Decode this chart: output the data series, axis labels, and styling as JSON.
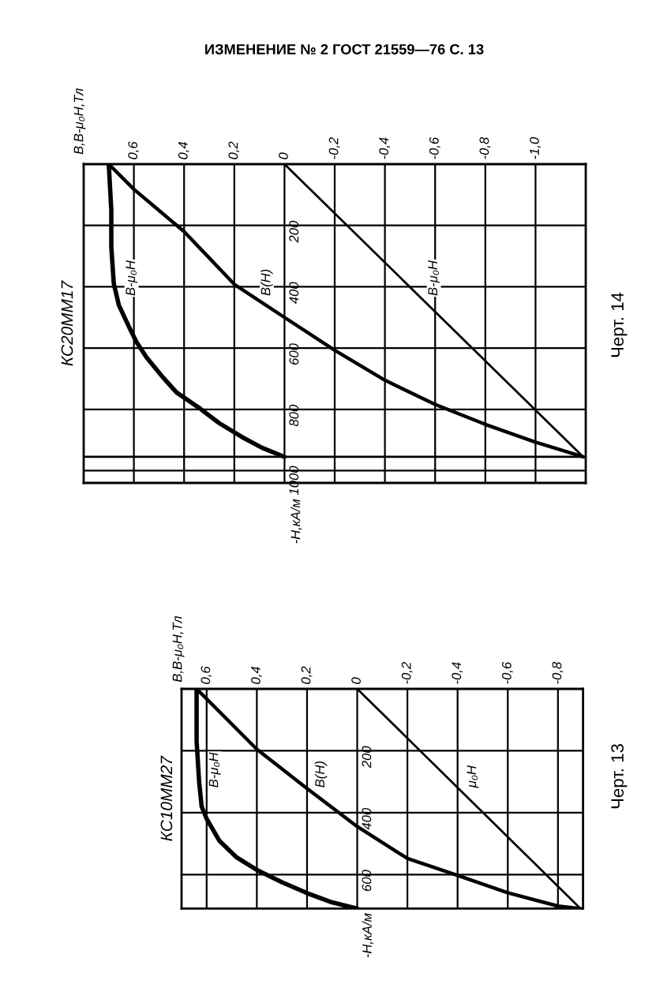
{
  "chart_data": [
    {
      "type": "line",
      "title": "КС20ММ17",
      "ylabel": "-H,кА/м",
      "annotations": [
        "ИЗМЕНЕНИЕ № 2 ГОСТ 21559—76 С. 13",
        "B,B-μ₀H,Тл",
        "Черт. 14"
      ],
      "xlim": [
        0.8,
        -1.2
      ],
      "ylim": [
        1040,
        0
      ],
      "xticks": [
        {
          "value": 0.6,
          "label": "0,6"
        },
        {
          "value": 0.4,
          "label": "0,4"
        },
        {
          "value": 0.2,
          "label": "0,2"
        },
        0,
        {
          "value": -0.2,
          "label": "-0,2"
        },
        {
          "value": -0.4,
          "label": "-0,4"
        },
        {
          "value": -0.6,
          "label": "-0,6"
        },
        {
          "value": -0.8,
          "label": "-0,8"
        },
        {
          "value": -1.0,
          "label": "-1,0"
        }
      ],
      "yticks": [
        200,
        400,
        600,
        800,
        1000
      ],
      "grid": true,
      "ref_lines": [
        {
          "axis": "y",
          "value": 955
        }
      ],
      "series": [
        {
          "name": "B-μ₀H",
          "color": "#000000",
          "x": [
            0.7,
            0.69,
            0.69,
            0.68,
            0.66,
            0.62,
            0.59,
            0.55,
            0.49,
            0.43,
            0.34,
            0.26,
            0.17,
            0.09,
            0.0
          ],
          "values": [
            0,
            150,
            270,
            390,
            460,
            530,
            580,
            630,
            690,
            745,
            795,
            845,
            890,
            925,
            955
          ]
        },
        {
          "name": "B(H)",
          "color": "#000000",
          "x": [
            0.7,
            0.6,
            0.4,
            0.2,
            0.0,
            -0.2,
            -0.4,
            -0.6,
            -0.8,
            -1.0,
            -1.19
          ],
          "values": [
            0,
            82,
            220,
            392,
            500,
            607,
            705,
            784,
            849,
            907,
            955
          ]
        },
        {
          "name": "B-μ₀H",
          "color": "#000000",
          "x": [
            0.0,
            -1.19
          ],
          "values": [
            0,
            955
          ]
        }
      ]
    },
    {
      "type": "line",
      "title": "КС10ММ27",
      "ylabel": "-H,кА/м",
      "annotations": [
        "B,B-μ₀H,Тл",
        "Черт. 13"
      ],
      "xlim": [
        0.7,
        -0.9
      ],
      "ylim": [
        710,
        0
      ],
      "xticks": [
        {
          "value": 0.6,
          "label": "0,6"
        },
        {
          "value": 0.4,
          "label": "0,4"
        },
        {
          "value": 0.2,
          "label": "0,2"
        },
        0,
        {
          "value": -0.2,
          "label": "-0,2"
        },
        {
          "value": -0.4,
          "label": "-0,4"
        },
        {
          "value": -0.6,
          "label": "-0,6"
        },
        {
          "value": -0.8,
          "label": "-0,8"
        }
      ],
      "yticks": [
        200,
        400,
        600
      ],
      "grid": true,
      "series": [
        {
          "name": "B-μ₀H",
          "color": "#000000",
          "x": [
            0.64,
            0.64,
            0.63,
            0.62,
            0.6,
            0.55,
            0.48,
            0.4,
            0.3,
            0.2,
            0.1,
            0.0
          ],
          "values": [
            0,
            170,
            300,
            380,
            420,
            490,
            545,
            585,
            625,
            660,
            690,
            710
          ]
        },
        {
          "name": "B(H)",
          "color": "#000000",
          "x": [
            0.64,
            0.4,
            0.2,
            0.0,
            -0.2,
            -0.4,
            -0.6,
            -0.8,
            -0.89
          ],
          "values": [
            0,
            195,
            322,
            445,
            548,
            603,
            659,
            702,
            710
          ]
        },
        {
          "name": "μ₀H",
          "color": "#000000",
          "x": [
            0.0,
            -0.89
          ],
          "values": [
            0,
            710
          ]
        }
      ]
    }
  ]
}
